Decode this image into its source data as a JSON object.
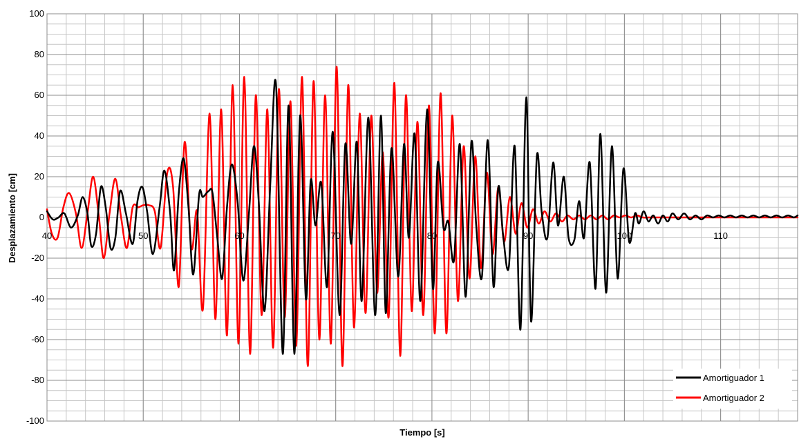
{
  "chart_data": {
    "type": "line",
    "title": "",
    "xlabel": "Tiempo [s]",
    "ylabel": "Desplazamiento  [cm]",
    "xlim": [
      40,
      118
    ],
    "ylim": [
      -100,
      100
    ],
    "x_major_ticks": [
      40,
      50,
      60,
      70,
      80,
      90,
      100,
      110
    ],
    "x_tick_labels": [
      "40",
      "50",
      "60",
      "70",
      "80",
      "90",
      "100",
      "110"
    ],
    "y_major_ticks": [
      -100,
      -80,
      -60,
      -40,
      -20,
      0,
      20,
      40,
      60,
      80,
      100
    ],
    "y_tick_labels": [
      "-100",
      "-80",
      "-60",
      "-40",
      "-20",
      "0",
      "20",
      "40",
      "60",
      "80",
      "100"
    ],
    "grid": true,
    "legend_position": "bottom-right",
    "series": [
      {
        "name": "Amortiguador 1",
        "color": "#000000",
        "points": [
          [
            40.0,
            3
          ],
          [
            40.6,
            -1
          ],
          [
            41.2,
            0
          ],
          [
            41.8,
            2
          ],
          [
            42.5,
            -5
          ],
          [
            43.2,
            1
          ],
          [
            43.7,
            10
          ],
          [
            44.2,
            2
          ],
          [
            44.6,
            -14
          ],
          [
            45.1,
            -8
          ],
          [
            45.6,
            15
          ],
          [
            46.1,
            5
          ],
          [
            46.6,
            -15
          ],
          [
            47.1,
            -10
          ],
          [
            47.6,
            13
          ],
          [
            48.2,
            2
          ],
          [
            48.9,
            -13
          ],
          [
            49.4,
            8
          ],
          [
            49.9,
            15
          ],
          [
            50.4,
            3
          ],
          [
            51.0,
            -18
          ],
          [
            51.7,
            5
          ],
          [
            52.2,
            23
          ],
          [
            52.8,
            2
          ],
          [
            53.2,
            -26
          ],
          [
            53.7,
            12
          ],
          [
            54.2,
            29
          ],
          [
            54.7,
            5
          ],
          [
            55.2,
            -28
          ],
          [
            55.8,
            11
          ],
          [
            56.2,
            10
          ],
          [
            56.8,
            13
          ],
          [
            57.2,
            12
          ],
          [
            57.7,
            -10
          ],
          [
            58.2,
            -30
          ],
          [
            58.7,
            5
          ],
          [
            59.2,
            26
          ],
          [
            59.8,
            8
          ],
          [
            60.4,
            -31
          ],
          [
            61.0,
            3
          ],
          [
            61.5,
            35
          ],
          [
            62.0,
            8
          ],
          [
            62.6,
            -46
          ],
          [
            63.2,
            16
          ],
          [
            63.8,
            65
          ],
          [
            64.5,
            -67
          ],
          [
            65.1,
            55
          ],
          [
            65.7,
            -67
          ],
          [
            66.3,
            50
          ],
          [
            66.9,
            -40
          ],
          [
            67.4,
            18
          ],
          [
            67.9,
            -4
          ],
          [
            68.5,
            17
          ],
          [
            69.1,
            -34
          ],
          [
            69.7,
            42
          ],
          [
            70.4,
            -48
          ],
          [
            71.0,
            36
          ],
          [
            71.6,
            -13
          ],
          [
            72.2,
            37
          ],
          [
            72.7,
            -41
          ],
          [
            73.4,
            49
          ],
          [
            74.1,
            -48
          ],
          [
            74.7,
            50
          ],
          [
            75.2,
            -47
          ],
          [
            75.8,
            34
          ],
          [
            76.5,
            -29
          ],
          [
            77.1,
            36
          ],
          [
            77.6,
            -10
          ],
          [
            78.2,
            41
          ],
          [
            78.8,
            -41
          ],
          [
            79.5,
            53
          ],
          [
            80.1,
            -35
          ],
          [
            80.6,
            27
          ],
          [
            81.2,
            -5
          ],
          [
            81.7,
            -2
          ],
          [
            82.3,
            -21
          ],
          [
            82.9,
            36
          ],
          [
            83.5,
            -39
          ],
          [
            84.1,
            37
          ],
          [
            84.6,
            -4
          ],
          [
            85.2,
            -29
          ],
          [
            85.8,
            38
          ],
          [
            86.4,
            -34
          ],
          [
            86.9,
            15
          ],
          [
            87.4,
            -9
          ],
          [
            88.0,
            -24
          ],
          [
            88.6,
            35
          ],
          [
            89.2,
            -55
          ],
          [
            89.8,
            59
          ],
          [
            90.3,
            -51
          ],
          [
            90.9,
            30
          ],
          [
            91.4,
            3
          ],
          [
            92.0,
            -10
          ],
          [
            92.6,
            27
          ],
          [
            93.1,
            -4
          ],
          [
            93.7,
            20
          ],
          [
            94.2,
            -10
          ],
          [
            94.8,
            -11
          ],
          [
            95.3,
            8
          ],
          [
            95.8,
            -10
          ],
          [
            96.4,
            27
          ],
          [
            97.0,
            -35
          ],
          [
            97.5,
            41
          ],
          [
            98.1,
            -37
          ],
          [
            98.7,
            35
          ],
          [
            99.3,
            -30
          ],
          [
            99.9,
            24
          ],
          [
            100.5,
            -12
          ],
          [
            101.1,
            2
          ],
          [
            101.5,
            -3
          ],
          [
            102.0,
            3
          ],
          [
            102.5,
            -2
          ],
          [
            103.0,
            1
          ],
          [
            103.5,
            -3
          ],
          [
            104.0,
            1
          ],
          [
            104.5,
            -2
          ],
          [
            105.0,
            2
          ],
          [
            105.6,
            -1
          ],
          [
            106.2,
            2
          ],
          [
            106.8,
            -1
          ],
          [
            107.4,
            1
          ],
          [
            108.0,
            -1
          ],
          [
            108.6,
            1
          ],
          [
            109.2,
            0
          ],
          [
            109.8,
            1
          ],
          [
            110.4,
            0
          ],
          [
            111.0,
            1
          ],
          [
            111.6,
            0
          ],
          [
            112.2,
            1
          ],
          [
            112.8,
            0
          ],
          [
            113.4,
            1
          ],
          [
            114.0,
            0
          ],
          [
            114.6,
            1
          ],
          [
            115.2,
            0
          ],
          [
            115.8,
            1
          ],
          [
            116.4,
            0
          ],
          [
            117.0,
            1
          ],
          [
            117.6,
            0
          ],
          [
            118.0,
            1
          ]
        ]
      },
      {
        "name": "Amortiguador 2",
        "color": "#ff0000",
        "points": [
          [
            40.0,
            4
          ],
          [
            40.5,
            -8
          ],
          [
            41.1,
            -10
          ],
          [
            41.7,
            5
          ],
          [
            42.3,
            12
          ],
          [
            43.0,
            2
          ],
          [
            43.6,
            -15
          ],
          [
            44.2,
            2
          ],
          [
            44.8,
            20
          ],
          [
            45.4,
            0
          ],
          [
            45.9,
            -20
          ],
          [
            46.5,
            2
          ],
          [
            47.1,
            19
          ],
          [
            47.7,
            0
          ],
          [
            48.3,
            -15
          ],
          [
            48.9,
            5
          ],
          [
            49.5,
            5
          ],
          [
            50.0,
            6
          ],
          [
            50.6,
            6
          ],
          [
            51.2,
            3
          ],
          [
            51.8,
            -15
          ],
          [
            52.5,
            22
          ],
          [
            53.1,
            15
          ],
          [
            53.7,
            -34
          ],
          [
            54.3,
            37
          ],
          [
            55.0,
            -15
          ],
          [
            55.6,
            3
          ],
          [
            56.2,
            -45
          ],
          [
            56.9,
            51
          ],
          [
            57.5,
            -50
          ],
          [
            58.1,
            53
          ],
          [
            58.7,
            -58
          ],
          [
            59.3,
            65
          ],
          [
            59.9,
            -62
          ],
          [
            60.5,
            69
          ],
          [
            61.1,
            -67
          ],
          [
            61.7,
            60
          ],
          [
            62.3,
            -48
          ],
          [
            62.9,
            53
          ],
          [
            63.5,
            -64
          ],
          [
            64.1,
            63
          ],
          [
            64.7,
            -49
          ],
          [
            65.3,
            57
          ],
          [
            65.9,
            -63
          ],
          [
            66.5,
            69
          ],
          [
            67.1,
            -73
          ],
          [
            67.7,
            67
          ],
          [
            68.3,
            -60
          ],
          [
            68.9,
            60
          ],
          [
            69.5,
            -62
          ],
          [
            70.1,
            74
          ],
          [
            70.7,
            -73
          ],
          [
            71.3,
            65
          ],
          [
            71.9,
            -54
          ],
          [
            72.5,
            51
          ],
          [
            73.1,
            -47
          ],
          [
            73.7,
            50
          ],
          [
            74.3,
            -37
          ],
          [
            74.9,
            32
          ],
          [
            75.5,
            -49
          ],
          [
            76.1,
            66
          ],
          [
            76.7,
            -68
          ],
          [
            77.3,
            60
          ],
          [
            77.9,
            -46
          ],
          [
            78.5,
            47
          ],
          [
            79.1,
            -48
          ],
          [
            79.7,
            55
          ],
          [
            80.3,
            -57
          ],
          [
            80.9,
            61
          ],
          [
            81.5,
            -57
          ],
          [
            82.1,
            50
          ],
          [
            82.7,
            -41
          ],
          [
            83.3,
            35
          ],
          [
            83.9,
            -30
          ],
          [
            84.5,
            30
          ],
          [
            85.1,
            -25
          ],
          [
            85.7,
            22
          ],
          [
            86.3,
            -18
          ],
          [
            86.9,
            15
          ],
          [
            87.5,
            -12
          ],
          [
            88.1,
            10
          ],
          [
            88.7,
            -8
          ],
          [
            89.3,
            7
          ],
          [
            89.9,
            -5
          ],
          [
            90.5,
            4
          ],
          [
            91.1,
            -3
          ],
          [
            91.7,
            3
          ],
          [
            92.3,
            -2
          ],
          [
            92.9,
            2
          ],
          [
            93.5,
            -2
          ],
          [
            94.1,
            1
          ],
          [
            94.7,
            -1
          ],
          [
            95.3,
            1
          ],
          [
            95.9,
            -1
          ],
          [
            96.5,
            1
          ],
          [
            97.1,
            -1
          ],
          [
            97.7,
            1
          ],
          [
            98.3,
            -1
          ],
          [
            98.9,
            1
          ],
          [
            99.5,
            0
          ],
          [
            100.1,
            1
          ],
          [
            100.7,
            0
          ],
          [
            101.3,
            1
          ],
          [
            101.9,
            0
          ],
          [
            102.5,
            0
          ],
          [
            103.1,
            0
          ],
          [
            103.7,
            0
          ],
          [
            104.3,
            0
          ],
          [
            104.9,
            0
          ],
          [
            105.5,
            0
          ],
          [
            106.1,
            0
          ],
          [
            106.7,
            0
          ],
          [
            107.3,
            0
          ],
          [
            107.9,
            0
          ],
          [
            108.5,
            0
          ],
          [
            109.1,
            0
          ],
          [
            109.7,
            0
          ],
          [
            110.3,
            0
          ],
          [
            110.9,
            0
          ],
          [
            111.5,
            0
          ],
          [
            112.1,
            0
          ],
          [
            112.7,
            0
          ],
          [
            113.3,
            0
          ],
          [
            113.9,
            0
          ],
          [
            114.5,
            0
          ],
          [
            115.1,
            0
          ],
          [
            115.7,
            0
          ],
          [
            116.3,
            0
          ],
          [
            116.9,
            0
          ],
          [
            117.5,
            0
          ],
          [
            118.0,
            0
          ]
        ]
      }
    ]
  }
}
